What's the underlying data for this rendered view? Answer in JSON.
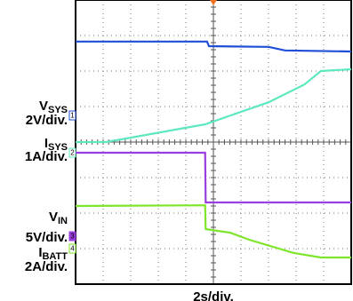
{
  "chart_data": {
    "type": "line",
    "x_label": "2s/div.",
    "xlim": [
      0,
      10
    ],
    "ylim": [
      0,
      8
    ],
    "xticks": [
      0,
      1,
      2,
      3,
      4,
      5,
      6,
      7,
      8,
      9,
      10
    ],
    "yticks": [
      0,
      1,
      2,
      3,
      4,
      5,
      6,
      7,
      8
    ],
    "grid": true,
    "series": [
      {
        "name": "V",
        "subscript": "SYS",
        "scale": "2V/div.",
        "channel": "1",
        "color": "#1f4fd6",
        "x": [
          0,
          4.77,
          4.84,
          7,
          7.6,
          10
        ],
        "values": [
          6.83,
          6.83,
          6.7,
          6.68,
          6.58,
          6.55
        ]
      },
      {
        "name": "I",
        "subscript": "SYS",
        "scale": "1A/div.",
        "channel": "2",
        "color": "#5ee8c0",
        "x": [
          0,
          1.1,
          4.7,
          7,
          8.3,
          8.9,
          10
        ],
        "values": [
          4.0,
          4.0,
          4.5,
          5.12,
          5.62,
          6.0,
          6.05
        ]
      },
      {
        "name": "V",
        "subscript": "IN",
        "scale": "5V/div.",
        "channel": "3",
        "color": "#9a3ee0",
        "x": [
          0,
          4.7,
          4.72,
          10
        ],
        "values": [
          3.7,
          3.7,
          2.3,
          2.3
        ]
      },
      {
        "name": "I",
        "subscript": "BATT",
        "scale": "2A/div.",
        "channel": "4",
        "color": "#7ee62a",
        "x": [
          0,
          4.7,
          4.72,
          5.6,
          6.3,
          7.9,
          8.9,
          10
        ],
        "values": [
          2.2,
          2.22,
          1.55,
          1.45,
          1.25,
          0.88,
          0.75,
          0.75
        ]
      }
    ]
  }
}
